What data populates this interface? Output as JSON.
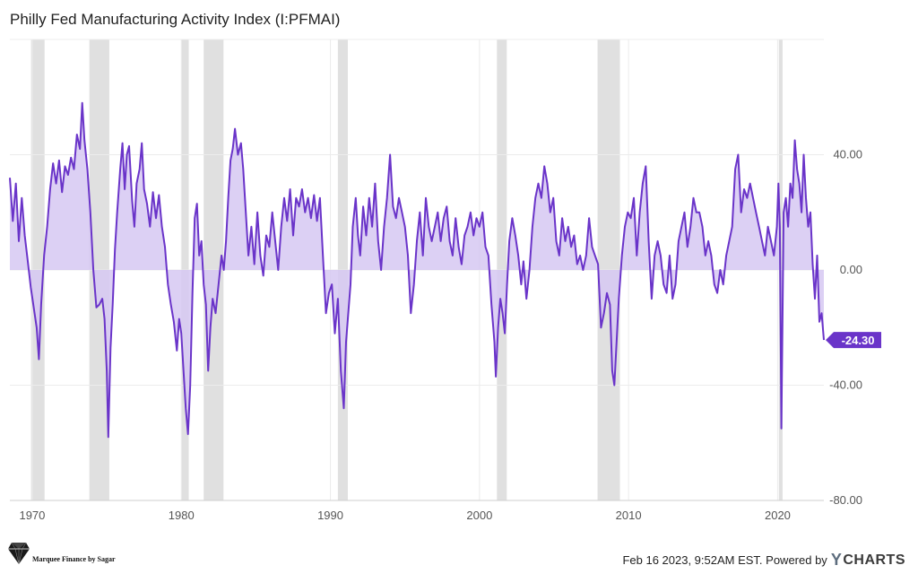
{
  "chart_data": {
    "type": "area",
    "title": "Philly Fed Manufacturing Activity Index (I:PFMAI)",
    "x_tick_labels": [
      "1970",
      "1980",
      "1990",
      "2000",
      "2010",
      "2020"
    ],
    "x_ticks": [
      1970,
      1980,
      1990,
      2000,
      2010,
      2020
    ],
    "y_tick_labels": [
      "40.00",
      "0.00",
      "-40.00",
      "-80.00"
    ],
    "y_ticks": [
      40,
      0,
      -40,
      -80
    ],
    "xlim": [
      1968.5,
      2023.1
    ],
    "ylim": [
      -80,
      80
    ],
    "baseline": 0,
    "line_color": "#6a34c9",
    "fill_color": "#d6c8f2",
    "recession_color": "#e0e0e0",
    "last_value_label": "-24.30",
    "last_value": -24.3,
    "recessions": [
      [
        1969.92,
        1970.83
      ],
      [
        1973.83,
        1975.17
      ],
      [
        1980.0,
        1980.5
      ],
      [
        1981.5,
        1982.83
      ],
      [
        1990.5,
        1991.17
      ],
      [
        2001.17,
        2001.83
      ],
      [
        2007.92,
        2009.42
      ],
      [
        2020.08,
        2020.33
      ]
    ],
    "series": [
      {
        "name": "Philly Fed Manufacturing Activity Index",
        "points": [
          [
            1968.5,
            32
          ],
          [
            1968.7,
            17
          ],
          [
            1968.9,
            30
          ],
          [
            1969.1,
            10
          ],
          [
            1969.3,
            25
          ],
          [
            1969.5,
            12
          ],
          [
            1969.7,
            3
          ],
          [
            1969.9,
            -6
          ],
          [
            1970.1,
            -13
          ],
          [
            1970.3,
            -20
          ],
          [
            1970.45,
            -31
          ],
          [
            1970.6,
            -12
          ],
          [
            1970.8,
            5
          ],
          [
            1971.0,
            15
          ],
          [
            1971.2,
            28
          ],
          [
            1971.4,
            37
          ],
          [
            1971.6,
            30
          ],
          [
            1971.8,
            38
          ],
          [
            1972.0,
            27
          ],
          [
            1972.2,
            36
          ],
          [
            1972.4,
            33
          ],
          [
            1972.6,
            39
          ],
          [
            1972.8,
            35
          ],
          [
            1973.0,
            47
          ],
          [
            1973.2,
            42
          ],
          [
            1973.35,
            58
          ],
          [
            1973.5,
            45
          ],
          [
            1973.7,
            35
          ],
          [
            1973.9,
            20
          ],
          [
            1974.1,
            0
          ],
          [
            1974.3,
            -13
          ],
          [
            1974.5,
            -12
          ],
          [
            1974.7,
            -10
          ],
          [
            1974.85,
            -17
          ],
          [
            1975.0,
            -35
          ],
          [
            1975.1,
            -58
          ],
          [
            1975.25,
            -27
          ],
          [
            1975.4,
            -12
          ],
          [
            1975.55,
            7
          ],
          [
            1975.7,
            20
          ],
          [
            1975.9,
            35
          ],
          [
            1976.05,
            44
          ],
          [
            1976.2,
            28
          ],
          [
            1976.35,
            40
          ],
          [
            1976.5,
            43
          ],
          [
            1976.7,
            24
          ],
          [
            1976.85,
            15
          ],
          [
            1977.0,
            30
          ],
          [
            1977.2,
            35
          ],
          [
            1977.35,
            44
          ],
          [
            1977.5,
            28
          ],
          [
            1977.7,
            23
          ],
          [
            1977.9,
            15
          ],
          [
            1978.1,
            27
          ],
          [
            1978.3,
            18
          ],
          [
            1978.5,
            26
          ],
          [
            1978.7,
            15
          ],
          [
            1978.9,
            8
          ],
          [
            1979.1,
            -5
          ],
          [
            1979.3,
            -12
          ],
          [
            1979.5,
            -18
          ],
          [
            1979.7,
            -28
          ],
          [
            1979.85,
            -17
          ],
          [
            1980.0,
            -22
          ],
          [
            1980.15,
            -35
          ],
          [
            1980.3,
            -48
          ],
          [
            1980.45,
            -57
          ],
          [
            1980.6,
            -40
          ],
          [
            1980.75,
            -8
          ],
          [
            1980.9,
            18
          ],
          [
            1981.05,
            23
          ],
          [
            1981.2,
            5
          ],
          [
            1981.35,
            10
          ],
          [
            1981.5,
            -5
          ],
          [
            1981.65,
            -12
          ],
          [
            1981.8,
            -35
          ],
          [
            1981.95,
            -20
          ],
          [
            1982.1,
            -10
          ],
          [
            1982.3,
            -15
          ],
          [
            1982.5,
            -5
          ],
          [
            1982.7,
            5
          ],
          [
            1982.85,
            0
          ],
          [
            1983.0,
            10
          ],
          [
            1983.15,
            25
          ],
          [
            1983.3,
            38
          ],
          [
            1983.45,
            42
          ],
          [
            1983.6,
            49
          ],
          [
            1983.8,
            40
          ],
          [
            1984.0,
            44
          ],
          [
            1984.15,
            35
          ],
          [
            1984.3,
            22
          ],
          [
            1984.5,
            5
          ],
          [
            1984.7,
            15
          ],
          [
            1984.9,
            2
          ],
          [
            1985.1,
            20
          ],
          [
            1985.3,
            5
          ],
          [
            1985.5,
            -2
          ],
          [
            1985.7,
            12
          ],
          [
            1985.9,
            8
          ],
          [
            1986.1,
            20
          ],
          [
            1986.3,
            10
          ],
          [
            1986.5,
            0
          ],
          [
            1986.7,
            15
          ],
          [
            1986.9,
            25
          ],
          [
            1987.1,
            17
          ],
          [
            1987.3,
            28
          ],
          [
            1987.5,
            12
          ],
          [
            1987.7,
            25
          ],
          [
            1987.9,
            22
          ],
          [
            1988.1,
            28
          ],
          [
            1988.3,
            20
          ],
          [
            1988.5,
            25
          ],
          [
            1988.7,
            18
          ],
          [
            1988.9,
            26
          ],
          [
            1989.1,
            17
          ],
          [
            1989.3,
            25
          ],
          [
            1989.5,
            5
          ],
          [
            1989.7,
            -15
          ],
          [
            1989.9,
            -8
          ],
          [
            1990.1,
            -5
          ],
          [
            1990.3,
            -22
          ],
          [
            1990.5,
            -10
          ],
          [
            1990.7,
            -35
          ],
          [
            1990.9,
            -48
          ],
          [
            1991.05,
            -25
          ],
          [
            1991.2,
            -15
          ],
          [
            1991.35,
            -5
          ],
          [
            1991.5,
            15
          ],
          [
            1991.7,
            25
          ],
          [
            1991.85,
            12
          ],
          [
            1992.0,
            5
          ],
          [
            1992.2,
            22
          ],
          [
            1992.4,
            12
          ],
          [
            1992.6,
            25
          ],
          [
            1992.8,
            15
          ],
          [
            1993.0,
            30
          ],
          [
            1993.2,
            10
          ],
          [
            1993.4,
            0
          ],
          [
            1993.6,
            15
          ],
          [
            1993.8,
            25
          ],
          [
            1994.0,
            40
          ],
          [
            1994.2,
            22
          ],
          [
            1994.4,
            18
          ],
          [
            1994.6,
            25
          ],
          [
            1994.8,
            20
          ],
          [
            1995.0,
            15
          ],
          [
            1995.2,
            5
          ],
          [
            1995.4,
            -15
          ],
          [
            1995.6,
            -5
          ],
          [
            1995.8,
            10
          ],
          [
            1996.0,
            20
          ],
          [
            1996.2,
            5
          ],
          [
            1996.4,
            25
          ],
          [
            1996.6,
            15
          ],
          [
            1996.8,
            10
          ],
          [
            1997.0,
            15
          ],
          [
            1997.2,
            20
          ],
          [
            1997.4,
            10
          ],
          [
            1997.6,
            18
          ],
          [
            1997.8,
            22
          ],
          [
            1998.0,
            10
          ],
          [
            1998.2,
            5
          ],
          [
            1998.4,
            18
          ],
          [
            1998.6,
            8
          ],
          [
            1998.8,
            2
          ],
          [
            1999.0,
            12
          ],
          [
            1999.2,
            15
          ],
          [
            1999.4,
            20
          ],
          [
            1999.6,
            12
          ],
          [
            1999.8,
            18
          ],
          [
            2000.0,
            15
          ],
          [
            2000.2,
            20
          ],
          [
            2000.4,
            8
          ],
          [
            2000.6,
            5
          ],
          [
            2000.8,
            -12
          ],
          [
            2001.0,
            -25
          ],
          [
            2001.1,
            -37
          ],
          [
            2001.25,
            -20
          ],
          [
            2001.4,
            -10
          ],
          [
            2001.55,
            -15
          ],
          [
            2001.7,
            -22
          ],
          [
            2001.85,
            -5
          ],
          [
            2002.0,
            10
          ],
          [
            2002.2,
            18
          ],
          [
            2002.4,
            12
          ],
          [
            2002.6,
            5
          ],
          [
            2002.8,
            -5
          ],
          [
            2002.95,
            3
          ],
          [
            2003.15,
            -10
          ],
          [
            2003.35,
            0
          ],
          [
            2003.55,
            15
          ],
          [
            2003.75,
            25
          ],
          [
            2003.95,
            30
          ],
          [
            2004.15,
            25
          ],
          [
            2004.35,
            36
          ],
          [
            2004.55,
            30
          ],
          [
            2004.75,
            20
          ],
          [
            2004.95,
            25
          ],
          [
            2005.15,
            10
          ],
          [
            2005.35,
            5
          ],
          [
            2005.55,
            18
          ],
          [
            2005.75,
            10
          ],
          [
            2005.95,
            15
          ],
          [
            2006.15,
            8
          ],
          [
            2006.35,
            12
          ],
          [
            2006.55,
            2
          ],
          [
            2006.75,
            5
          ],
          [
            2006.95,
            0
          ],
          [
            2007.15,
            5
          ],
          [
            2007.35,
            18
          ],
          [
            2007.55,
            8
          ],
          [
            2007.75,
            5
          ],
          [
            2007.95,
            2
          ],
          [
            2008.15,
            -20
          ],
          [
            2008.35,
            -15
          ],
          [
            2008.55,
            -8
          ],
          [
            2008.75,
            -12
          ],
          [
            2008.9,
            -35
          ],
          [
            2009.05,
            -40
          ],
          [
            2009.2,
            -25
          ],
          [
            2009.35,
            -10
          ],
          [
            2009.55,
            5
          ],
          [
            2009.75,
            15
          ],
          [
            2009.95,
            20
          ],
          [
            2010.15,
            18
          ],
          [
            2010.35,
            25
          ],
          [
            2010.55,
            5
          ],
          [
            2010.75,
            20
          ],
          [
            2010.95,
            30
          ],
          [
            2011.15,
            36
          ],
          [
            2011.35,
            10
          ],
          [
            2011.55,
            -10
          ],
          [
            2011.75,
            5
          ],
          [
            2011.95,
            10
          ],
          [
            2012.15,
            5
          ],
          [
            2012.35,
            -5
          ],
          [
            2012.55,
            -8
          ],
          [
            2012.75,
            5
          ],
          [
            2012.95,
            -10
          ],
          [
            2013.15,
            -5
          ],
          [
            2013.35,
            10
          ],
          [
            2013.55,
            15
          ],
          [
            2013.75,
            20
          ],
          [
            2013.95,
            8
          ],
          [
            2014.15,
            15
          ],
          [
            2014.35,
            25
          ],
          [
            2014.55,
            20
          ],
          [
            2014.75,
            20
          ],
          [
            2014.95,
            15
          ],
          [
            2015.15,
            5
          ],
          [
            2015.35,
            10
          ],
          [
            2015.55,
            5
          ],
          [
            2015.75,
            -5
          ],
          [
            2015.95,
            -8
          ],
          [
            2016.15,
            0
          ],
          [
            2016.35,
            -5
          ],
          [
            2016.55,
            5
          ],
          [
            2016.75,
            10
          ],
          [
            2016.95,
            15
          ],
          [
            2017.15,
            35
          ],
          [
            2017.35,
            40
          ],
          [
            2017.55,
            20
          ],
          [
            2017.75,
            28
          ],
          [
            2017.95,
            25
          ],
          [
            2018.15,
            30
          ],
          [
            2018.35,
            25
          ],
          [
            2018.55,
            20
          ],
          [
            2018.75,
            15
          ],
          [
            2018.95,
            10
          ],
          [
            2019.15,
            5
          ],
          [
            2019.35,
            15
          ],
          [
            2019.55,
            10
          ],
          [
            2019.75,
            5
          ],
          [
            2019.95,
            15
          ],
          [
            2020.05,
            30
          ],
          [
            2020.15,
            15
          ],
          [
            2020.25,
            -55
          ],
          [
            2020.4,
            20
          ],
          [
            2020.55,
            25
          ],
          [
            2020.7,
            15
          ],
          [
            2020.85,
            30
          ],
          [
            2021.0,
            25
          ],
          [
            2021.15,
            45
          ],
          [
            2021.3,
            35
          ],
          [
            2021.45,
            30
          ],
          [
            2021.6,
            20
          ],
          [
            2021.75,
            40
          ],
          [
            2021.9,
            25
          ],
          [
            2022.05,
            15
          ],
          [
            2022.2,
            20
          ],
          [
            2022.35,
            2
          ],
          [
            2022.5,
            -10
          ],
          [
            2022.65,
            5
          ],
          [
            2022.8,
            -18
          ],
          [
            2022.95,
            -15
          ],
          [
            2023.1,
            -24.3
          ]
        ]
      }
    ]
  },
  "footer": {
    "brand_text": "Marquee Finance by Sagar",
    "timestamp_text": "Feb 16 2023, 9:52AM EST. Powered by",
    "ycharts_mark": "Y",
    "ycharts_word": "CHARTS"
  }
}
